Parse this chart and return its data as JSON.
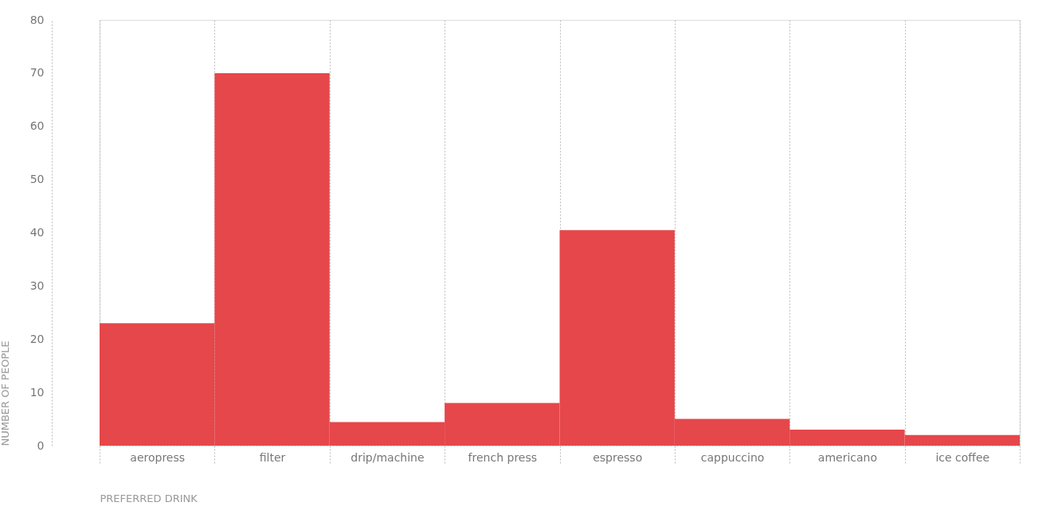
{
  "chart_data": {
    "type": "bar",
    "xlabel": "PREFERRED DRINK",
    "ylabel": "NUMBER OF PEOPLE",
    "categories": [
      "aeropress",
      "filter",
      "drip/machine",
      "french press",
      "espresso",
      "cappuccino",
      "americano",
      "ice coffee"
    ],
    "values": [
      23,
      70,
      4.4,
      8,
      40.5,
      5,
      3,
      2
    ],
    "color": "#e5474b",
    "ylim": [
      0,
      80
    ],
    "yticks": [
      0,
      10,
      20,
      30,
      40,
      50,
      60,
      70,
      80
    ],
    "grid": "x"
  }
}
